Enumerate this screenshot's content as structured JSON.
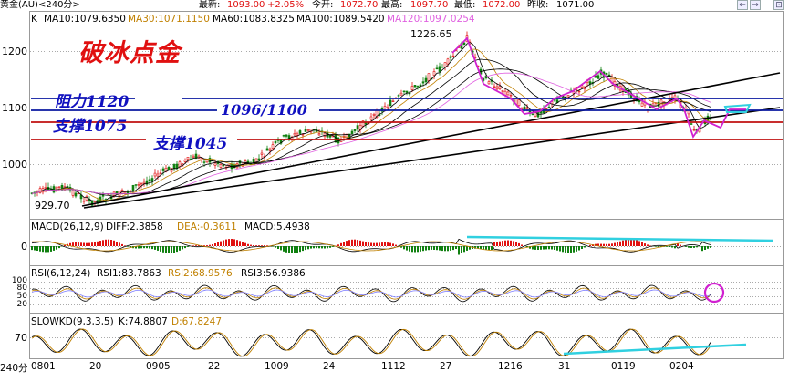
{
  "topbar": {
    "name": "黄金(AU)<240分>",
    "latest_label": "最新:",
    "latest": "1093.00",
    "change": "+2.05%",
    "open_label": "今开:",
    "open": "1072.70",
    "high_label": "最高:",
    "high": "1097.70",
    "low_label": "最低:",
    "low": "1072.00",
    "prev_label": "昨收:",
    "prev": "1071.00"
  },
  "ma": {
    "k_label": "K",
    "ma10": "MA10:1079.6350",
    "ma30": "MA30:1071.1150",
    "ma60": "MA60:1083.8325",
    "ma100": "MA100:1089.5420",
    "ma120": "MA120:1097.0254"
  },
  "colors": {
    "ma10": "#000000",
    "ma30": "#c08000",
    "ma60": "#000000",
    "ma100": "#000000",
    "ma120": "#e060e0",
    "up": "#e01010",
    "down": "#108010",
    "resistance": "#0a18a0",
    "support": "#c01010",
    "cyan": "#30d0e0",
    "magenta": "#d020d0"
  },
  "annotations": {
    "title": "破冰点金",
    "resistance": "阻力1120",
    "level_1096": "1096/1100",
    "support_1075": "支撑1075",
    "support_1045": "支撑1045",
    "high_price": "1226.65",
    "low_price": "929.70"
  },
  "yaxis": {
    "y1200": "1200",
    "y1100": "1100",
    "y1000": "1000"
  },
  "macd": {
    "label": "MACD(26,12,9)",
    "diff": "DIFF:2.3858",
    "dea": "DEA:-0.3611",
    "macd": "MACD:5.4938",
    "zero": "0"
  },
  "rsi": {
    "label": "RSI(6,12,24)",
    "rsi1": "RSI1:83.7863",
    "rsi2": "RSI2:68.9576",
    "rsi3": "RSI3:56.9386",
    "l100": "100",
    "l80": "80",
    "l50": "50",
    "l20": "20"
  },
  "kd": {
    "label": "SLOWKD(9,3,3,5)",
    "k": "K:74.8807",
    "d": "D:67.8247",
    "l70": "70"
  },
  "xaxis": {
    "period": "240分",
    "ticks": [
      "0801",
      "20",
      "0905",
      "22",
      "1009",
      "24",
      "1112",
      "27",
      "1216",
      "31",
      "0119",
      "0204"
    ]
  }
}
